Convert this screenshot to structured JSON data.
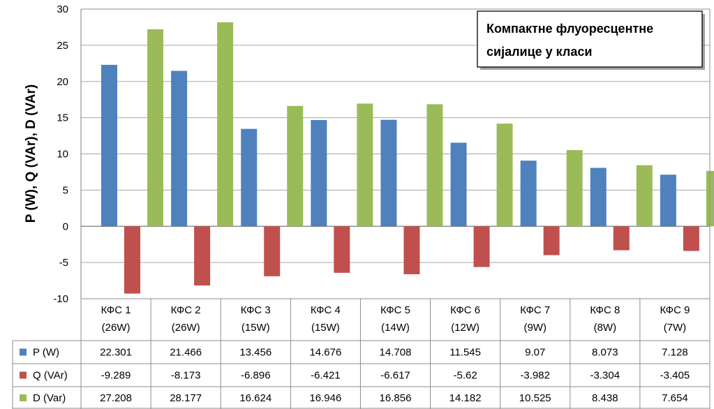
{
  "chart_data": {
    "type": "bar",
    "title_lines": [
      "Компактне флуоресцентне",
      "сијалице у класи"
    ],
    "xlabel": "",
    "ylabel": "P (W), Q (VAr), D (VAr)",
    "ylim": [
      -10,
      30
    ],
    "yticks": [
      30,
      25,
      20,
      15,
      10,
      5,
      0,
      -5,
      -10
    ],
    "grid": true,
    "legend": "data-table",
    "categories": [
      [
        "КФС 1",
        "(26W)"
      ],
      [
        "КФС 2",
        "(26W)"
      ],
      [
        "КФС 3",
        "(15W)"
      ],
      [
        "КФС 4",
        "(15W)"
      ],
      [
        "КФС 5",
        "(14W)"
      ],
      [
        "КФС 6",
        "(12W)"
      ],
      [
        "КФС 7",
        "(9W)"
      ],
      [
        "КФС 8",
        "(8W)"
      ],
      [
        "КФС 9",
        "(7W)"
      ]
    ],
    "series": [
      {
        "name": "P (W)",
        "color": "#4F81BD",
        "values": [
          22.301,
          21.466,
          13.456,
          14.676,
          14.708,
          11.545,
          9.07,
          8.073,
          7.128
        ],
        "labels": [
          "22.301",
          "21.466",
          "13.456",
          "14.676",
          "14.708",
          "11.545",
          "9.07",
          "8.073",
          "7.128"
        ]
      },
      {
        "name": "Q (VAr)",
        "color": "#C0504D",
        "values": [
          -9.289,
          -8.173,
          -6.896,
          -6.421,
          -6.617,
          -5.62,
          -3.982,
          -3.304,
          -3.405
        ],
        "labels": [
          "-9.289",
          "-8.173",
          "-6.896",
          "-6.421",
          "-6.617",
          "-5.62",
          "-3.982",
          "-3.304",
          "-3.405"
        ]
      },
      {
        "name": "D (Var)",
        "color": "#9BBB59",
        "values": [
          27.208,
          28.177,
          16.624,
          16.946,
          16.856,
          14.182,
          10.525,
          8.438,
          7.654
        ],
        "labels": [
          "27.208",
          "28.177",
          "16.624",
          "16.946",
          "16.856",
          "14.182",
          "10.525",
          "8.438",
          "7.654"
        ]
      }
    ]
  }
}
